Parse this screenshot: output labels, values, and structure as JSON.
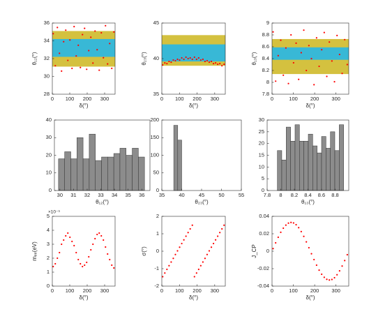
{
  "chart_data": [
    {
      "type": "scatter",
      "xlabel": "δ(°)",
      "ylabel": "θ₁₂(°)",
      "xlim": [
        0,
        360
      ],
      "xticks": [
        0,
        100,
        200,
        300
      ],
      "ylim": [
        28,
        36
      ],
      "yticks": [
        28,
        30,
        32,
        34,
        36
      ],
      "bands": [
        {
          "range": [
            31.1,
            35.1
          ],
          "color": "#d4c13f"
        },
        {
          "range": [
            32.2,
            34.2
          ],
          "color": "#38b8d6"
        }
      ],
      "color": "#ff0000",
      "x": [
        5,
        17,
        29,
        41,
        53,
        65,
        77,
        89,
        101,
        113,
        125,
        137,
        149,
        161,
        173,
        185,
        197,
        209,
        221,
        233,
        245,
        257,
        269,
        281,
        293,
        305,
        317,
        329,
        341,
        353
      ],
      "values": [
        34.8,
        31.2,
        35.5,
        32.6,
        30.6,
        33.9,
        35.2,
        31.8,
        34.1,
        30.9,
        35.6,
        32.3,
        33.5,
        31.0,
        34.7,
        35.4,
        30.8,
        32.9,
        34.4,
        31.5,
        35.1,
        33.0,
        30.7,
        34.9,
        32.1,
        35.7,
        31.4,
        33.7,
        30.9,
        35.0
      ]
    },
    {
      "type": "scatter",
      "xlabel": "δ(°)",
      "ylabel": "θ₂₃(°)",
      "xlim": [
        0,
        360
      ],
      "xticks": [
        0,
        100,
        200,
        300
      ],
      "ylim": [
        35,
        45
      ],
      "yticks": [
        35,
        40,
        45
      ],
      "bands": [
        {
          "range": [
            39.0,
            43.3
          ],
          "color": "#d4c13f"
        },
        {
          "range": [
            39.6,
            42.0
          ],
          "color": "#38b8d6"
        }
      ],
      "color": "#ff0000",
      "x": [
        5,
        17,
        29,
        41,
        53,
        65,
        77,
        89,
        101,
        113,
        125,
        137,
        149,
        161,
        173,
        185,
        197,
        209,
        221,
        233,
        245,
        257,
        269,
        281,
        293,
        305,
        317,
        329,
        341,
        353
      ],
      "values": [
        39.1,
        39.4,
        39.3,
        39.6,
        39.5,
        39.8,
        39.7,
        39.9,
        39.8,
        40.1,
        39.9,
        40.2,
        40.0,
        40.1,
        39.9,
        40.2,
        39.9,
        40.1,
        39.8,
        39.9,
        39.6,
        39.7,
        39.5,
        39.6,
        39.3,
        39.4,
        39.2,
        39.3,
        39.0,
        39.2
      ]
    },
    {
      "type": "scatter",
      "xlabel": "δ(°)",
      "ylabel": "θ₁₃(°)",
      "xlim": [
        0,
        360
      ],
      "xticks": [
        0,
        100,
        200,
        300
      ],
      "ylim": [
        7.8,
        9
      ],
      "yticks": [
        7.8,
        8,
        8.2,
        8.4,
        8.6,
        8.8,
        9
      ],
      "bands": [
        {
          "range": [
            8.14,
            8.73
          ],
          "color": "#d4c13f"
        },
        {
          "range": [
            8.38,
            8.59
          ],
          "color": "#38b8d6"
        }
      ],
      "color": "#ff0000",
      "x": [
        5,
        17,
        29,
        41,
        53,
        65,
        77,
        89,
        101,
        113,
        125,
        137,
        149,
        161,
        173,
        185,
        197,
        209,
        221,
        233,
        245,
        257,
        269,
        281,
        293,
        305,
        317,
        329,
        341,
        353
      ],
      "values": [
        8.85,
        8.02,
        8.45,
        8.71,
        8.12,
        8.58,
        7.98,
        8.8,
        8.33,
        8.66,
        8.05,
        8.5,
        8.88,
        8.2,
        8.62,
        8.4,
        7.96,
        8.75,
        8.27,
        8.55,
        8.84,
        8.1,
        8.68,
        8.36,
        8.01,
        8.79,
        8.47,
        8.15,
        8.72,
        8.3
      ]
    },
    {
      "type": "histogram",
      "xlabel": "θ₁₂(°)",
      "xlim": [
        29.6,
        36.6
      ],
      "xticks": [
        30,
        31,
        32,
        33,
        34,
        35,
        36
      ],
      "ylim": [
        0,
        40
      ],
      "yticks": [
        0,
        10,
        20,
        30,
        40
      ],
      "color": "#8c8c8c",
      "bins": [
        29.9,
        30.35,
        30.8,
        31.25,
        31.7,
        32.15,
        32.6,
        33.05,
        33.5,
        33.95,
        34.4,
        34.85,
        35.3,
        35.75,
        36.2
      ],
      "values": [
        18,
        22,
        18,
        30,
        18,
        32,
        17,
        19,
        19,
        21,
        24,
        20,
        24,
        19
      ]
    },
    {
      "type": "histogram",
      "xlabel": "θ₂₃(°)",
      "xlim": [
        35,
        55
      ],
      "xticks": [
        35,
        40,
        45,
        50,
        55
      ],
      "ylim": [
        0,
        200
      ],
      "yticks": [
        0,
        50,
        100,
        150,
        200
      ],
      "color": "#8c8c8c",
      "bins": [
        38,
        39,
        40
      ],
      "values": [
        185,
        143
      ]
    },
    {
      "type": "histogram",
      "xlabel": "θ₁₃(°)",
      "xlim": [
        7.8,
        9
      ],
      "xticks": [
        7.8,
        8,
        8.2,
        8.4,
        8.6,
        8.8
      ],
      "ylim": [
        0,
        30
      ],
      "yticks": [
        0,
        5,
        10,
        15,
        20,
        25,
        30
      ],
      "color": "#8c8c8c",
      "bins": [
        7.95,
        8.015,
        8.08,
        8.145,
        8.21,
        8.275,
        8.34,
        8.405,
        8.47,
        8.535,
        8.6,
        8.665,
        8.73,
        8.795,
        8.86,
        8.925
      ],
      "values": [
        17,
        13,
        27,
        21,
        28,
        21,
        21,
        24,
        19,
        16,
        23,
        18,
        25,
        17,
        28
      ]
    },
    {
      "type": "scatter",
      "xlabel": "δ(°)",
      "ylabel": "mₑₑ(eV)",
      "annotation": "×10⁻³",
      "xlim": [
        0,
        360
      ],
      "xticks": [
        0,
        100,
        200,
        300
      ],
      "ylim": [
        0,
        5
      ],
      "yticks": [
        0,
        1,
        2,
        3,
        4,
        5
      ],
      "color": "#ff0000",
      "x": [
        5,
        17,
        29,
        41,
        53,
        65,
        77,
        89,
        101,
        113,
        125,
        137,
        149,
        161,
        173,
        185,
        197,
        209,
        221,
        233,
        245,
        257,
        269,
        281,
        293,
        305,
        317,
        329,
        341,
        353
      ],
      "values": [
        1.4,
        1.6,
        2.0,
        2.4,
        3.0,
        3.3,
        3.6,
        3.8,
        3.5,
        3.2,
        2.9,
        2.4,
        1.9,
        1.6,
        1.4,
        1.5,
        1.7,
        2.1,
        2.6,
        3.0,
        3.4,
        3.7,
        3.8,
        3.6,
        3.3,
        2.8,
        2.3,
        1.9,
        1.5,
        1.3
      ]
    },
    {
      "type": "scatter",
      "xlabel": "δ(°)",
      "ylabel": "σ(°)",
      "xlim": [
        0,
        360
      ],
      "xticks": [
        0,
        100,
        200,
        300
      ],
      "ylim": [
        -2,
        2
      ],
      "yticks": [
        -2,
        -1,
        0,
        1,
        2
      ],
      "color": "#ff0000",
      "x": [
        5,
        17,
        29,
        41,
        53,
        65,
        77,
        89,
        101,
        113,
        125,
        137,
        149,
        161,
        173,
        185,
        197,
        209,
        221,
        233,
        245,
        257,
        269,
        281,
        293,
        305,
        317,
        329,
        341,
        353
      ],
      "values": [
        -1.46,
        -1.25,
        -1.04,
        -0.83,
        -0.62,
        -0.41,
        -0.19,
        0.02,
        0.23,
        0.44,
        0.65,
        0.86,
        1.07,
        1.28,
        1.49,
        -1.46,
        -1.25,
        -1.04,
        -0.83,
        -0.62,
        -0.41,
        -0.19,
        0.02,
        0.23,
        0.44,
        0.65,
        0.86,
        1.07,
        1.28,
        1.49
      ]
    },
    {
      "type": "scatter",
      "xlabel": "δ(°)",
      "ylabel": "J_CP",
      "xlim": [
        0,
        360
      ],
      "xticks": [
        0,
        100,
        200,
        300
      ],
      "ylim": [
        -0.04,
        0.04
      ],
      "yticks": [
        -0.04,
        -0.02,
        0,
        0.02,
        0.04
      ],
      "color": "#ff0000",
      "x": [
        5,
        17,
        29,
        41,
        53,
        65,
        77,
        89,
        101,
        113,
        125,
        137,
        149,
        161,
        173,
        185,
        197,
        209,
        221,
        233,
        245,
        257,
        269,
        281,
        293,
        305,
        317,
        329,
        341,
        353
      ],
      "values": [
        0.003,
        0.0096,
        0.016,
        0.0217,
        0.0264,
        0.0299,
        0.0322,
        0.033,
        0.0324,
        0.0304,
        0.027,
        0.0225,
        0.017,
        0.0107,
        0.004,
        -0.0029,
        -0.0096,
        -0.016,
        -0.0217,
        -0.0264,
        -0.0299,
        -0.0322,
        -0.033,
        -0.0324,
        -0.0304,
        -0.027,
        -0.0225,
        -0.017,
        -0.0107,
        -0.004
      ]
    }
  ]
}
